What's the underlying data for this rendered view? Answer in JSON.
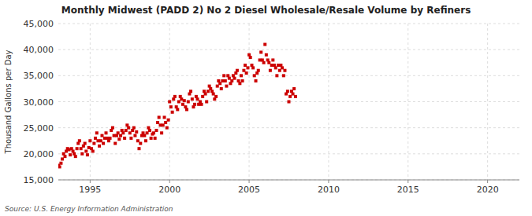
{
  "chart_data": {
    "type": "scatter",
    "title": "Monthly Midwest (PADD 2) No 2 Diesel Wholesale/Resale Volume by Refiners",
    "ylabel": "Thousand Gallons per Day",
    "annotations": [
      "Source: U.S. Energy Information Administration"
    ],
    "color": "#cc0000",
    "marker": "square",
    "grid": true,
    "xlim": [
      1993,
      2022
    ],
    "ylim": [
      15000,
      45000
    ],
    "xticks": [
      1995,
      2000,
      2005,
      2010,
      2015,
      2020
    ],
    "yticks": [
      {
        "value": 15000,
        "label": "15,000"
      },
      {
        "value": 20000,
        "label": "20,000"
      },
      {
        "value": 25000,
        "label": "25,000"
      },
      {
        "value": 30000,
        "label": "30,000"
      },
      {
        "value": 35000,
        "label": "35,000"
      },
      {
        "value": 40000,
        "label": "40,000"
      },
      {
        "value": 45000,
        "label": "45,000"
      }
    ],
    "x": [
      1993.0,
      1993.08,
      1993.17,
      1993.25,
      1993.33,
      1993.42,
      1993.5,
      1993.58,
      1993.67,
      1993.75,
      1993.83,
      1993.92,
      1994.0,
      1994.08,
      1994.17,
      1994.25,
      1994.33,
      1994.42,
      1994.5,
      1994.58,
      1994.67,
      1994.75,
      1994.83,
      1994.92,
      1995.0,
      1995.08,
      1995.17,
      1995.25,
      1995.33,
      1995.42,
      1995.5,
      1995.58,
      1995.67,
      1995.75,
      1995.83,
      1995.92,
      1996.0,
      1996.08,
      1996.17,
      1996.25,
      1996.33,
      1996.42,
      1996.5,
      1996.58,
      1996.67,
      1996.75,
      1996.83,
      1996.92,
      1997.0,
      1997.08,
      1997.17,
      1997.25,
      1997.33,
      1997.42,
      1997.5,
      1997.58,
      1997.67,
      1997.75,
      1997.83,
      1997.92,
      1998.0,
      1998.08,
      1998.17,
      1998.25,
      1998.33,
      1998.42,
      1998.5,
      1998.58,
      1998.67,
      1998.75,
      1998.83,
      1998.92,
      1999.0,
      1999.08,
      1999.17,
      1999.25,
      1999.33,
      1999.42,
      1999.5,
      1999.58,
      1999.67,
      1999.75,
      1999.83,
      1999.92,
      2000.0,
      2000.08,
      2000.17,
      2000.25,
      2000.33,
      2000.42,
      2000.5,
      2000.58,
      2000.67,
      2000.75,
      2000.83,
      2000.92,
      2001.0,
      2001.08,
      2001.17,
      2001.25,
      2001.33,
      2001.42,
      2001.5,
      2001.58,
      2001.67,
      2001.75,
      2001.83,
      2001.92,
      2002.0,
      2002.08,
      2002.17,
      2002.25,
      2002.33,
      2002.42,
      2002.5,
      2002.58,
      2002.67,
      2002.75,
      2002.83,
      2002.92,
      2003.0,
      2003.08,
      2003.17,
      2003.25,
      2003.33,
      2003.42,
      2003.5,
      2003.58,
      2003.67,
      2003.75,
      2003.83,
      2003.92,
      2004.0,
      2004.08,
      2004.17,
      2004.25,
      2004.33,
      2004.42,
      2004.5,
      2004.58,
      2004.67,
      2004.75,
      2004.83,
      2004.92,
      2005.0,
      2005.08,
      2005.17,
      2005.25,
      2005.33,
      2005.42,
      2005.5,
      2005.58,
      2005.67,
      2005.75,
      2005.83,
      2005.92,
      2006.0,
      2006.08,
      2006.17,
      2006.25,
      2006.33,
      2006.42,
      2006.5,
      2006.58,
      2006.67,
      2006.75,
      2006.83,
      2006.92,
      2007.0,
      2007.08,
      2007.17,
      2007.25,
      2007.33,
      2007.42,
      2007.5,
      2007.58,
      2007.67,
      2007.75,
      2007.83,
      2007.92
    ],
    "values": [
      17800,
      17500,
      18200,
      19000,
      20000,
      19500,
      20500,
      21000,
      20800,
      19800,
      21000,
      20500,
      20000,
      19500,
      21000,
      22000,
      22500,
      21000,
      20000,
      21500,
      22000,
      20500,
      19800,
      21200,
      22500,
      21000,
      20500,
      22000,
      23000,
      24000,
      22500,
      21500,
      22500,
      23500,
      22000,
      23000,
      24000,
      23000,
      22500,
      23000,
      24500,
      25000,
      23500,
      22000,
      23500,
      24000,
      22800,
      23500,
      24500,
      24000,
      23000,
      24500,
      25500,
      25000,
      24000,
      23000,
      24500,
      25000,
      23500,
      24200,
      22500,
      21000,
      22000,
      23500,
      24000,
      23500,
      22500,
      24000,
      25000,
      24500,
      23000,
      23800,
      24000,
      23000,
      24500,
      26000,
      27000,
      25500,
      24000,
      25500,
      27000,
      26000,
      25000,
      26500,
      30000,
      29000,
      28000,
      30500,
      31000,
      29000,
      28500,
      30000,
      31000,
      30500,
      29500,
      30200,
      29000,
      28500,
      30000,
      31500,
      32000,
      30500,
      29000,
      29500,
      31000,
      30500,
      29500,
      30000,
      29500,
      31000,
      32000,
      31500,
      30000,
      32000,
      33000,
      32500,
      32000,
      31500,
      30500,
      31000,
      33000,
      34000,
      33500,
      32500,
      34000,
      35000,
      34000,
      33000,
      35000,
      34500,
      33500,
      34000,
      35000,
      34500,
      35500,
      36000,
      34000,
      33500,
      35000,
      34000,
      36000,
      37000,
      35500,
      36500,
      39000,
      38500,
      37000,
      36500,
      35000,
      34000,
      35500,
      36000,
      38000,
      39500,
      38000,
      37500,
      41000,
      39000,
      38000,
      37500,
      36000,
      37000,
      38000,
      37000,
      36500,
      35000,
      37000,
      36000,
      37000,
      36500,
      35000,
      36000,
      31500,
      32000,
      30000,
      31000,
      32000,
      31500,
      32500,
      31000
    ]
  }
}
